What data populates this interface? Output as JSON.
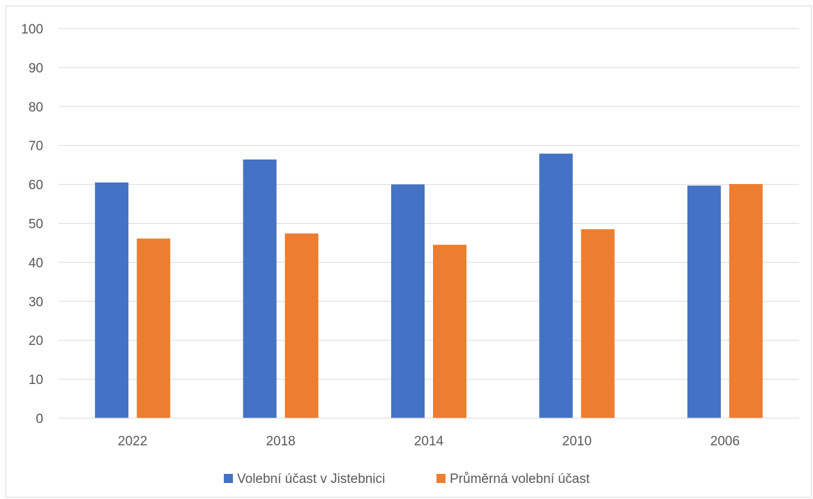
{
  "chart_data": {
    "type": "bar",
    "title": "",
    "xlabel": "",
    "ylabel": "",
    "categories": [
      "2022",
      "2018",
      "2014",
      "2010",
      "2006"
    ],
    "series": [
      {
        "name": "Volební účast v Jistebnici",
        "color": "#4472c4",
        "values": [
          60.5,
          66.4,
          60.0,
          67.9,
          59.7
        ]
      },
      {
        "name": "Průměrná volební účast",
        "color": "#ed7d31",
        "values": [
          46.1,
          47.4,
          44.5,
          48.5,
          60.1
        ]
      }
    ],
    "ylim": [
      0,
      100
    ],
    "yticks": [
      0,
      10,
      20,
      30,
      40,
      50,
      60,
      70,
      80,
      90,
      100
    ],
    "grid": true,
    "legend_position": "bottom",
    "gridline_color": "#d9d9d9",
    "text_color": "#595959"
  }
}
